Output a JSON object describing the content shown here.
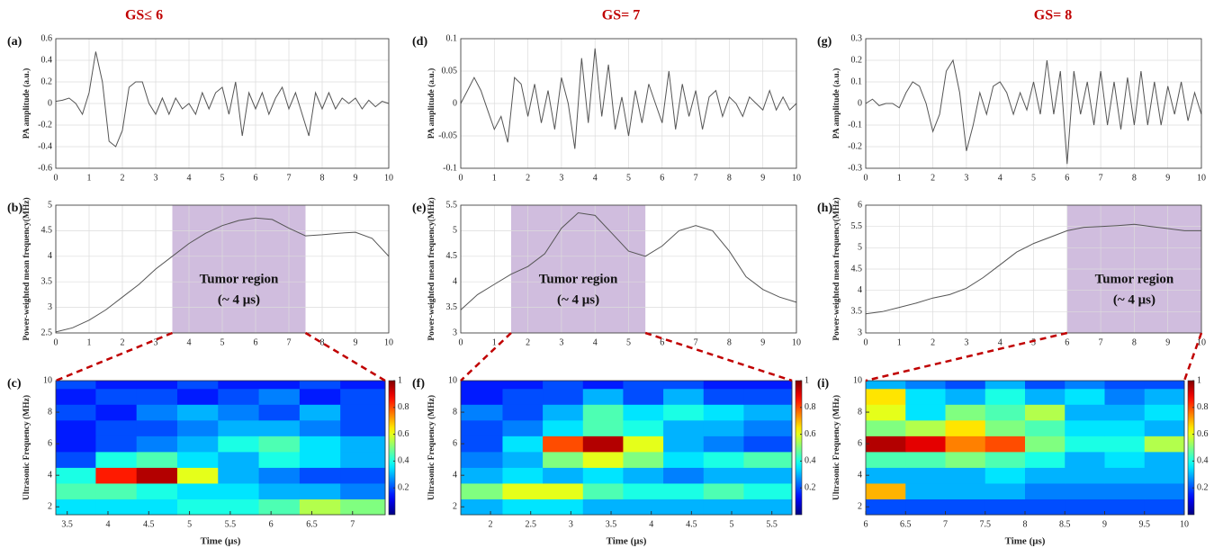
{
  "column_titles": [
    "GS≤ 6",
    "GS= 7",
    "GS= 8"
  ],
  "chart_data": [
    {
      "type": "line",
      "label": "(a)",
      "ylabel": "PA amplitude (a.u.)",
      "grid": true,
      "color": "#555555",
      "xlim": [
        0,
        10
      ],
      "ylim": [
        -0.6,
        0.6
      ],
      "xticks": [
        0,
        1,
        2,
        3,
        4,
        5,
        6,
        7,
        8,
        9,
        10
      ],
      "yticks": [
        -0.6,
        -0.4,
        -0.2,
        0,
        0.2,
        0.4,
        0.6
      ],
      "x": [
        0,
        0.2,
        0.4,
        0.6,
        0.8,
        1,
        1.2,
        1.4,
        1.6,
        1.8,
        2,
        2.2,
        2.4,
        2.6,
        2.8,
        3,
        3.2,
        3.4,
        3.6,
        3.8,
        4,
        4.2,
        4.4,
        4.6,
        4.8,
        5,
        5.2,
        5.4,
        5.6,
        5.8,
        6,
        6.2,
        6.4,
        6.6,
        6.8,
        7,
        7.2,
        7.4,
        7.6,
        7.8,
        8,
        8.2,
        8.4,
        8.6,
        8.8,
        9,
        9.2,
        9.4,
        9.6,
        9.8,
        10
      ],
      "values": [
        0.02,
        0.03,
        0.05,
        0.0,
        -0.1,
        0.1,
        0.48,
        0.2,
        -0.35,
        -0.4,
        -0.25,
        0.15,
        0.2,
        0.2,
        0.0,
        -0.1,
        0.05,
        -0.1,
        0.05,
        -0.05,
        0.0,
        -0.1,
        0.1,
        -0.05,
        0.1,
        0.15,
        -0.1,
        0.2,
        -0.3,
        0.1,
        -0.05,
        0.1,
        -0.1,
        0.05,
        0.15,
        -0.05,
        0.1,
        -0.1,
        -0.3,
        0.1,
        -0.05,
        0.1,
        -0.05,
        0.05,
        0.0,
        0.05,
        -0.05,
        0.03,
        -0.03,
        0.02,
        0.0
      ]
    },
    {
      "type": "line",
      "label": "(b)",
      "ylabel": "Power-weighted mean frequency(MHz)",
      "grid": true,
      "color": "#555555",
      "xlim": [
        0,
        10
      ],
      "ylim": [
        2.5,
        5
      ],
      "xticks": [
        0,
        1,
        2,
        3,
        4,
        5,
        6,
        7,
        8,
        9,
        10
      ],
      "yticks": [
        2.5,
        3,
        3.5,
        4,
        4.5,
        5
      ],
      "x": [
        0,
        0.5,
        1,
        1.5,
        2,
        2.5,
        3,
        3.5,
        4,
        4.5,
        5,
        5.5,
        6,
        6.5,
        7,
        7.5,
        8,
        8.5,
        9,
        9.5,
        10
      ],
      "values": [
        2.52,
        2.6,
        2.75,
        2.95,
        3.2,
        3.45,
        3.75,
        4.0,
        4.25,
        4.45,
        4.6,
        4.7,
        4.75,
        4.72,
        4.55,
        4.4,
        4.42,
        4.45,
        4.47,
        4.35,
        4.0
      ],
      "highlight": {
        "xrange": [
          3.5,
          7.5
        ],
        "color": "#c8b2d8",
        "text": [
          "Tumor region",
          "(~ 4 μs)"
        ]
      }
    },
    {
      "type": "heatmap",
      "label": "(c)",
      "ylabel": "Ultrasonic Frequency (MHz)",
      "xlabel": "Time (μs)",
      "xlim": [
        3.36,
        7.4
      ],
      "ylim": [
        1.5,
        10
      ],
      "xticks": [
        3.5,
        4,
        4.5,
        5,
        5.5,
        6,
        6.5,
        7
      ],
      "yticks": [
        2,
        4,
        6,
        8,
        10
      ],
      "x": [
        3.6,
        4.1,
        4.6,
        5.1,
        5.6,
        6.1,
        6.6,
        7.1
      ],
      "y": [
        2,
        3,
        4,
        5,
        6,
        7,
        8,
        9,
        10
      ],
      "z": [
        [
          0.35,
          0.35,
          0.35,
          0.4,
          0.4,
          0.45,
          0.55,
          0.5
        ],
        [
          0.45,
          0.45,
          0.4,
          0.35,
          0.35,
          0.3,
          0.3,
          0.25
        ],
        [
          0.4,
          0.85,
          0.95,
          0.6,
          0.3,
          0.25,
          0.2,
          0.2
        ],
        [
          0.2,
          0.4,
          0.45,
          0.35,
          0.3,
          0.4,
          0.35,
          0.3
        ],
        [
          0.15,
          0.2,
          0.25,
          0.3,
          0.4,
          0.45,
          0.35,
          0.3
        ],
        [
          0.15,
          0.2,
          0.2,
          0.25,
          0.3,
          0.3,
          0.25,
          0.2
        ],
        [
          0.2,
          0.15,
          0.25,
          0.3,
          0.25,
          0.2,
          0.3,
          0.2
        ],
        [
          0.15,
          0.2,
          0.2,
          0.15,
          0.2,
          0.25,
          0.15,
          0.2
        ],
        [
          0.2,
          0.15,
          0.15,
          0.2,
          0.15,
          0.15,
          0.2,
          0.15
        ]
      ],
      "colorbar": {
        "lim": [
          0,
          1
        ],
        "ticks": [
          0.2,
          0.4,
          0.6,
          0.8,
          1
        ]
      }
    },
    {
      "type": "line",
      "label": "(d)",
      "ylabel": "PA amplitude (a.u.)",
      "grid": true,
      "color": "#555555",
      "xlim": [
        0,
        10
      ],
      "ylim": [
        -0.1,
        0.1
      ],
      "xticks": [
        0,
        1,
        2,
        3,
        4,
        5,
        6,
        7,
        8,
        9,
        10
      ],
      "yticks": [
        -0.1,
        -0.05,
        0,
        0.05,
        0.1
      ],
      "x": [
        0,
        0.2,
        0.4,
        0.6,
        0.8,
        1,
        1.2,
        1.4,
        1.6,
        1.8,
        2,
        2.2,
        2.4,
        2.6,
        2.8,
        3,
        3.2,
        3.4,
        3.6,
        3.8,
        4,
        4.2,
        4.4,
        4.6,
        4.8,
        5,
        5.2,
        5.4,
        5.6,
        5.8,
        6,
        6.2,
        6.4,
        6.6,
        6.8,
        7,
        7.2,
        7.4,
        7.6,
        7.8,
        8,
        8.2,
        8.4,
        8.6,
        8.8,
        9,
        9.2,
        9.4,
        9.6,
        9.8,
        10
      ],
      "values": [
        0.0,
        0.02,
        0.04,
        0.02,
        -0.01,
        -0.04,
        -0.02,
        -0.06,
        0.04,
        0.03,
        -0.02,
        0.03,
        -0.03,
        0.02,
        -0.04,
        0.04,
        0.0,
        -0.07,
        0.07,
        -0.03,
        0.085,
        -0.02,
        0.06,
        -0.04,
        0.01,
        -0.05,
        0.02,
        -0.03,
        0.03,
        0.0,
        -0.03,
        0.05,
        -0.04,
        0.03,
        -0.02,
        0.02,
        -0.04,
        0.01,
        0.02,
        -0.02,
        0.01,
        0.0,
        -0.02,
        0.01,
        0.0,
        -0.01,
        0.02,
        -0.01,
        0.01,
        -0.01,
        0.0
      ]
    },
    {
      "type": "line",
      "label": "(e)",
      "ylabel": "Power-weighted mean frequency(MHz)",
      "grid": true,
      "color": "#555555",
      "xlim": [
        0,
        10
      ],
      "ylim": [
        3,
        5.5
      ],
      "xticks": [
        0,
        1,
        2,
        3,
        4,
        5,
        6,
        7,
        8,
        9,
        10
      ],
      "yticks": [
        3,
        3.5,
        4,
        4.5,
        5,
        5.5
      ],
      "x": [
        0,
        0.5,
        1,
        1.5,
        2,
        2.5,
        3,
        3.5,
        4,
        4.5,
        5,
        5.5,
        6,
        6.5,
        7,
        7.5,
        8,
        8.5,
        9,
        9.5,
        10
      ],
      "values": [
        3.45,
        3.75,
        3.95,
        4.15,
        4.3,
        4.55,
        5.05,
        5.35,
        5.3,
        4.95,
        4.6,
        4.5,
        4.7,
        5.0,
        5.1,
        5.0,
        4.6,
        4.1,
        3.85,
        3.7,
        3.6
      ],
      "highlight": {
        "xrange": [
          1.5,
          5.5
        ],
        "color": "#c8b2d8",
        "text": [
          "Tumor region",
          "(~ 4 μs)"
        ]
      }
    },
    {
      "type": "heatmap",
      "label": "(f)",
      "ylabel": "Ultrasonic Frequency (MHz)",
      "xlabel": "Time (μs)",
      "xlim": [
        1.63,
        5.75
      ],
      "ylim": [
        1.5,
        10
      ],
      "xticks": [
        2,
        2.5,
        3,
        3.5,
        4,
        4.5,
        5,
        5.5
      ],
      "yticks": [
        2,
        4,
        6,
        8,
        10
      ],
      "x": [
        1.9,
        2.4,
        2.9,
        3.4,
        3.9,
        4.4,
        4.9,
        5.4
      ],
      "y": [
        2,
        3,
        4,
        5,
        6,
        7,
        8,
        9,
        10
      ],
      "z": [
        [
          0.3,
          0.35,
          0.35,
          0.3,
          0.3,
          0.3,
          0.3,
          0.3
        ],
        [
          0.5,
          0.6,
          0.6,
          0.45,
          0.4,
          0.4,
          0.45,
          0.4
        ],
        [
          0.3,
          0.35,
          0.3,
          0.35,
          0.3,
          0.25,
          0.3,
          0.3
        ],
        [
          0.25,
          0.3,
          0.5,
          0.6,
          0.5,
          0.35,
          0.4,
          0.45
        ],
        [
          0.2,
          0.35,
          0.8,
          0.95,
          0.6,
          0.3,
          0.25,
          0.2
        ],
        [
          0.2,
          0.25,
          0.35,
          0.45,
          0.4,
          0.3,
          0.3,
          0.25
        ],
        [
          0.25,
          0.2,
          0.3,
          0.45,
          0.35,
          0.4,
          0.35,
          0.3
        ],
        [
          0.15,
          0.2,
          0.2,
          0.3,
          0.2,
          0.3,
          0.2,
          0.2
        ],
        [
          0.15,
          0.15,
          0.2,
          0.15,
          0.2,
          0.2,
          0.15,
          0.15
        ]
      ],
      "colorbar": {
        "lim": [
          0,
          1
        ],
        "ticks": [
          0.2,
          0.4,
          0.6,
          0.8,
          1
        ]
      }
    },
    {
      "type": "line",
      "label": "(g)",
      "ylabel": "PA amplitude (a.u.)",
      "grid": true,
      "color": "#555555",
      "xlim": [
        0,
        10
      ],
      "ylim": [
        -0.3,
        0.3
      ],
      "xticks": [
        0,
        1,
        2,
        3,
        4,
        5,
        6,
        7,
        8,
        9,
        10
      ],
      "yticks": [
        -0.3,
        -0.2,
        -0.1,
        0,
        0.1,
        0.2,
        0.3
      ],
      "x": [
        0,
        0.2,
        0.4,
        0.6,
        0.8,
        1,
        1.2,
        1.4,
        1.6,
        1.8,
        2,
        2.2,
        2.4,
        2.6,
        2.8,
        3,
        3.2,
        3.4,
        3.6,
        3.8,
        4,
        4.2,
        4.4,
        4.6,
        4.8,
        5,
        5.2,
        5.4,
        5.6,
        5.8,
        6,
        6.2,
        6.4,
        6.6,
        6.8,
        7,
        7.2,
        7.4,
        7.6,
        7.8,
        8,
        8.2,
        8.4,
        8.6,
        8.8,
        9,
        9.2,
        9.4,
        9.6,
        9.8,
        10
      ],
      "values": [
        0.0,
        0.02,
        -0.01,
        0.0,
        0.0,
        -0.02,
        0.05,
        0.1,
        0.08,
        0.0,
        -0.13,
        -0.05,
        0.15,
        0.2,
        0.05,
        -0.22,
        -0.1,
        0.05,
        -0.05,
        0.08,
        0.1,
        0.05,
        -0.05,
        0.05,
        -0.03,
        0.1,
        -0.05,
        0.2,
        -0.05,
        0.15,
        -0.28,
        0.15,
        -0.05,
        0.1,
        -0.1,
        0.15,
        -0.1,
        0.1,
        -0.12,
        0.12,
        -0.1,
        0.15,
        -0.1,
        0.1,
        -0.1,
        0.08,
        -0.05,
        0.1,
        -0.08,
        0.05,
        -0.05
      ]
    },
    {
      "type": "line",
      "label": "(h)",
      "ylabel": "Power-weighted mean frequency(MHz)",
      "grid": true,
      "color": "#555555",
      "xlim": [
        0,
        10
      ],
      "ylim": [
        3,
        6
      ],
      "xticks": [
        0,
        1,
        2,
        3,
        4,
        5,
        6,
        7,
        8,
        9,
        10
      ],
      "yticks": [
        3,
        3.5,
        4,
        4.5,
        5,
        5.5,
        6
      ],
      "x": [
        0,
        0.5,
        1,
        1.5,
        2,
        2.5,
        3,
        3.5,
        4,
        4.5,
        5,
        5.5,
        6,
        6.5,
        7,
        7.5,
        8,
        8.5,
        9,
        9.5,
        10
      ],
      "values": [
        3.45,
        3.5,
        3.6,
        3.7,
        3.82,
        3.9,
        4.05,
        4.3,
        4.6,
        4.9,
        5.1,
        5.25,
        5.4,
        5.48,
        5.5,
        5.52,
        5.55,
        5.5,
        5.45,
        5.4,
        5.4
      ],
      "highlight": {
        "xrange": [
          6,
          10
        ],
        "color": "#c8b2d8",
        "text": [
          "Tumor region",
          "(~ 4 μs)"
        ]
      }
    },
    {
      "type": "heatmap",
      "label": "(i)",
      "ylabel": "Ultrasonic Frequency (MHz)",
      "xlabel": "Time (μs)",
      "xlim": [
        6,
        10
      ],
      "ylim": [
        1.5,
        10
      ],
      "xticks": [
        6,
        6.5,
        7,
        7.5,
        8,
        8.5,
        9,
        9.5,
        10
      ],
      "yticks": [
        2,
        4,
        6,
        8,
        10
      ],
      "x": [
        6.25,
        6.75,
        7.25,
        7.75,
        8.25,
        8.75,
        9.25,
        9.75
      ],
      "y": [
        2,
        3,
        4,
        5,
        6,
        7,
        8,
        9,
        10
      ],
      "z": [
        [
          0.2,
          0.2,
          0.2,
          0.2,
          0.2,
          0.2,
          0.2,
          0.2
        ],
        [
          0.7,
          0.3,
          0.3,
          0.3,
          0.25,
          0.25,
          0.25,
          0.25
        ],
        [
          0.3,
          0.3,
          0.3,
          0.35,
          0.3,
          0.3,
          0.3,
          0.3
        ],
        [
          0.45,
          0.45,
          0.5,
          0.45,
          0.4,
          0.3,
          0.35,
          0.3
        ],
        [
          0.95,
          0.9,
          0.75,
          0.8,
          0.5,
          0.4,
          0.4,
          0.55
        ],
        [
          0.5,
          0.55,
          0.65,
          0.5,
          0.45,
          0.35,
          0.35,
          0.3
        ],
        [
          0.6,
          0.35,
          0.5,
          0.45,
          0.55,
          0.3,
          0.3,
          0.35
        ],
        [
          0.65,
          0.35,
          0.3,
          0.4,
          0.3,
          0.35,
          0.25,
          0.3
        ],
        [
          0.3,
          0.25,
          0.2,
          0.3,
          0.2,
          0.25,
          0.2,
          0.2
        ]
      ],
      "colorbar": {
        "lim": [
          0,
          1
        ],
        "ticks": [
          0.2,
          0.4,
          0.6,
          0.8,
          1
        ]
      }
    }
  ]
}
